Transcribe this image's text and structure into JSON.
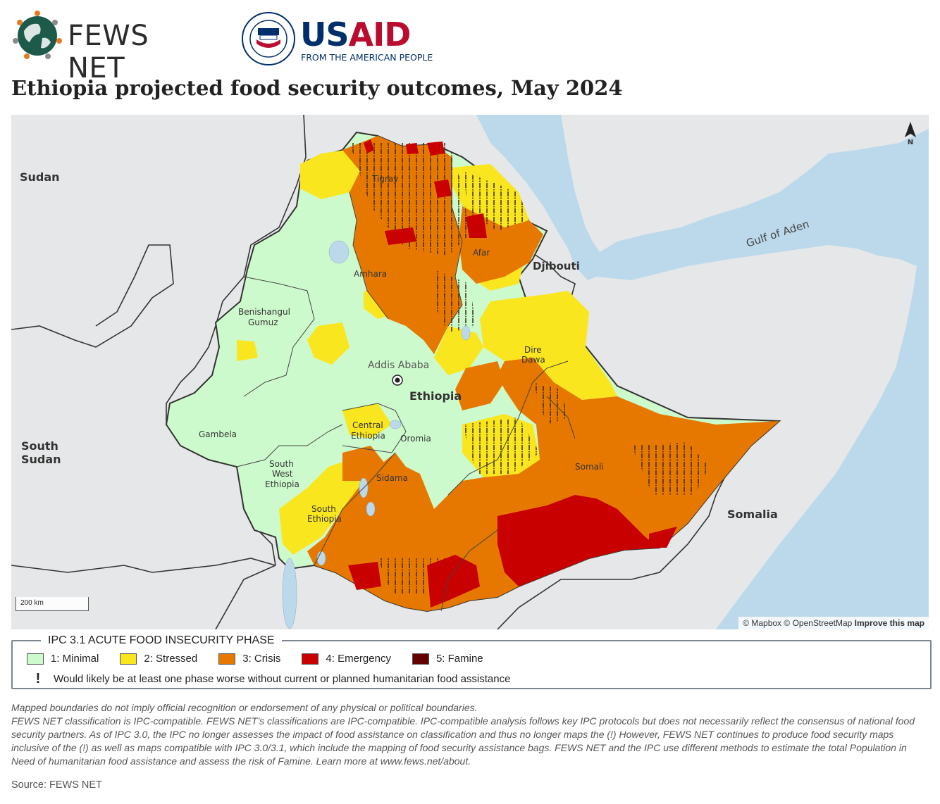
{
  "header": {
    "fews_logo_text": "FEWS NET",
    "usaid_word_us": "US",
    "usaid_word_aid": "AID",
    "usaid_tagline": "FROM THE AMERICAN PEOPLE"
  },
  "title": "Ethiopia projected food security outcomes, May 2024",
  "map": {
    "labels": {
      "sudan": "Sudan",
      "south_sudan_1": "South",
      "south_sudan_2": "Sudan",
      "somalia": "Somalia",
      "djibouti": "Djibouti",
      "gulf_of_aden": "Gulf of Aden",
      "ethiopia": "Ethiopia",
      "addis_ababa": "Addis Ababa",
      "tigray": "Tigray",
      "afar": "Afar",
      "amhara": "Amhara",
      "benishangul_1": "Benishangul",
      "benishangul_2": "Gumuz",
      "gambela": "Gambela",
      "central_ethiopia_1": "Central",
      "central_ethiopia_2": "Ethiopia",
      "oromia": "Oromia",
      "sidama": "Sidama",
      "sw_ethiopia_1": "South",
      "sw_ethiopia_2": "West",
      "sw_ethiopia_3": "Ethiopia",
      "south_ethiopia_1": "South",
      "south_ethiopia_2": "Ethiopia",
      "dire_dawa_1": "Dire",
      "dire_dawa_2": "Dawa",
      "somali": "Somali",
      "north": "N"
    },
    "scale_label": "200 km",
    "attribution_mapbox": "© Mapbox",
    "attribution_osm": "© OpenStreetMap",
    "attribution_improve": "Improve this map",
    "colors": {
      "water": "#bcd9ec",
      "land": "#e6e7e8",
      "phase1": "#cdfacd",
      "phase2": "#fae61e",
      "phase3": "#e67800",
      "phase4": "#c80000",
      "phase5": "#640000"
    }
  },
  "legend": {
    "title": "IPC 3.1 ACUTE FOOD INSECURITY PHASE",
    "items": [
      {
        "label": "1: Minimal",
        "color": "#cdfacd"
      },
      {
        "label": "2: Stressed",
        "color": "#fae61e"
      },
      {
        "label": "3: Crisis",
        "color": "#e67800"
      },
      {
        "label": "4: Emergency",
        "color": "#c80000"
      },
      {
        "label": "5: Famine",
        "color": "#640000"
      }
    ],
    "note_symbol": "!",
    "note": "Would likely be at least one phase worse without current or planned humanitarian food assistance"
  },
  "disclaimer": {
    "line1": "Mapped boundaries do not imply official recognition or endorsement of any physical or political boundaries.",
    "line2": "FEWS NET classification is IPC-compatible. FEWS NET’s classifications are IPC-compatible. IPC-compatible analysis follows key IPC protocols but does not necessarily reflect the consensus of national food security partners. As of IPC 3.0, the IPC no longer assesses the impact of food assistance on classification and thus no longer maps the (!) However, FEWS NET continues to produce food security maps inclusive of the (!) as well as maps compatible with IPC 3.0/3.1, which include the mapping of food security assistance bags. FEWS NET and the IPC use different methods to estimate the total Population in Need of humanitarian food assistance and assess the risk of Famine. Learn more at www.fews.net/about."
  },
  "source": "Source: FEWS NET"
}
